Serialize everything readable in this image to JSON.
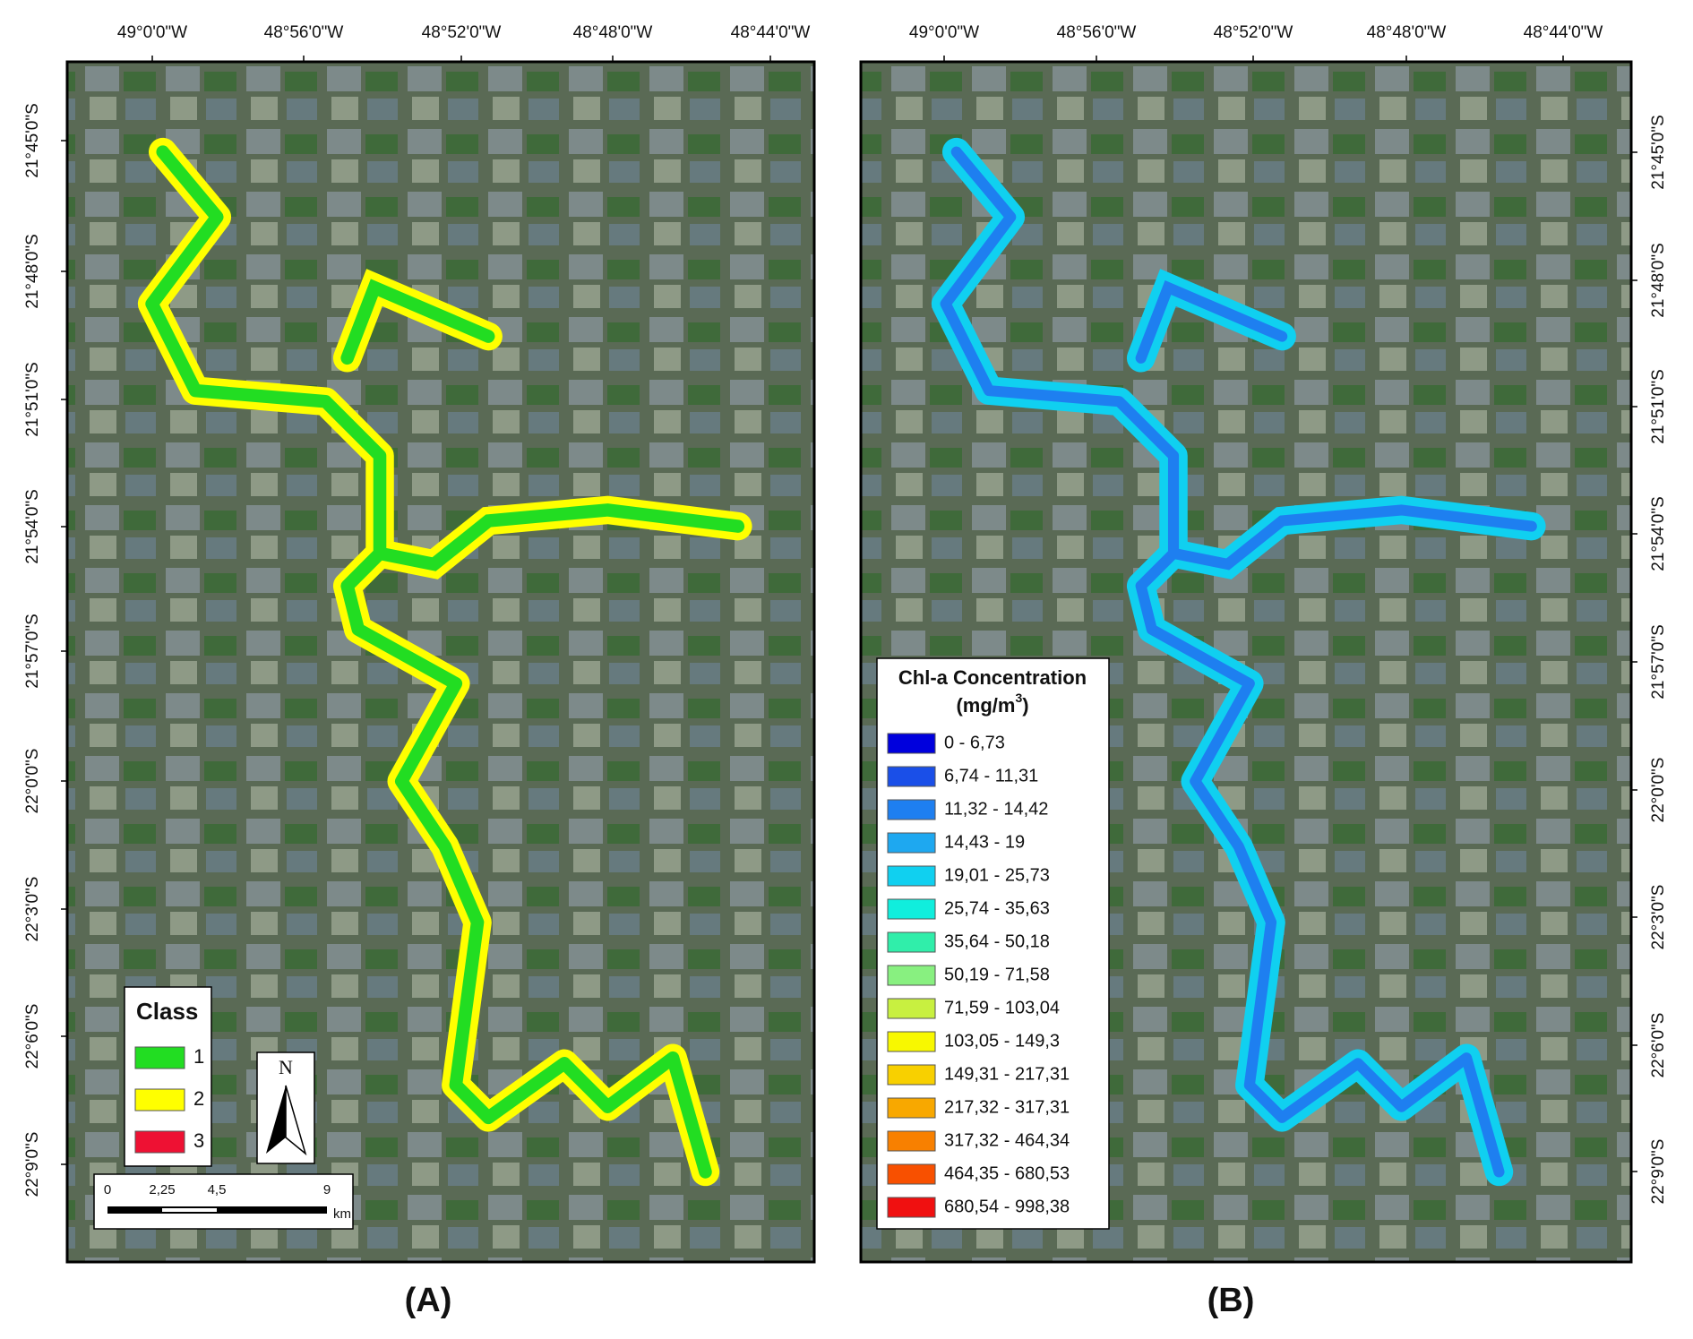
{
  "lon_labels": [
    "49°0'0\"W",
    "48°56'0\"W",
    "48°52'0\"W",
    "48°48'0\"W",
    "48°44'0\"W"
  ],
  "lat_labels": [
    "21°45'0\"S",
    "21°48'0\"S",
    "21°51'0\"S",
    "21°54'0\"S",
    "21°57'0\"S",
    "22°0'0\"S",
    "22°3'0\"S",
    "22°6'0\"S",
    "22°9'0\"S"
  ],
  "panel_a": {
    "caption": "(A)",
    "legend": {
      "title": "Class",
      "items": [
        {
          "label": "1",
          "color": "#22dd22"
        },
        {
          "label": "2",
          "color": "#ffff00"
        },
        {
          "label": "3",
          "color": "#ee1133"
        }
      ]
    },
    "north": "N",
    "scale_bar": {
      "labels": [
        "0",
        "2,25",
        "4,5",
        "9"
      ],
      "unit": "km"
    }
  },
  "panel_b": {
    "caption": "(B)",
    "legend": {
      "title": "Chl-a Concentration",
      "unit": "(mg/m",
      "unit_sup": "3",
      "unit_close": ")",
      "items": [
        {
          "label": "0 - 6,73",
          "color": "#0000dd"
        },
        {
          "label": "6,74 - 11,31",
          "color": "#1a4fe8"
        },
        {
          "label": "11,32 - 14,42",
          "color": "#1e7ff0"
        },
        {
          "label": "14,43 - 19",
          "color": "#1ea8f0"
        },
        {
          "label": "19,01 - 25,73",
          "color": "#10d0f0"
        },
        {
          "label": "25,74 - 35,63",
          "color": "#10eedd"
        },
        {
          "label": "35,64 - 50,18",
          "color": "#30eeaa"
        },
        {
          "label": "50,19 - 71,58",
          "color": "#88f080"
        },
        {
          "label": "71,59 - 103,04",
          "color": "#c8f040"
        },
        {
          "label": "103,05 - 149,3",
          "color": "#f8f800"
        },
        {
          "label": "149,31 - 217,31",
          "color": "#f8d000"
        },
        {
          "label": "217,32 - 317,31",
          "color": "#f8a800"
        },
        {
          "label": "317,32 - 464,34",
          "color": "#f88000"
        },
        {
          "label": "464,35 - 680,53",
          "color": "#f85000"
        },
        {
          "label": "680,54 - 998,38",
          "color": "#f01010"
        }
      ]
    }
  }
}
